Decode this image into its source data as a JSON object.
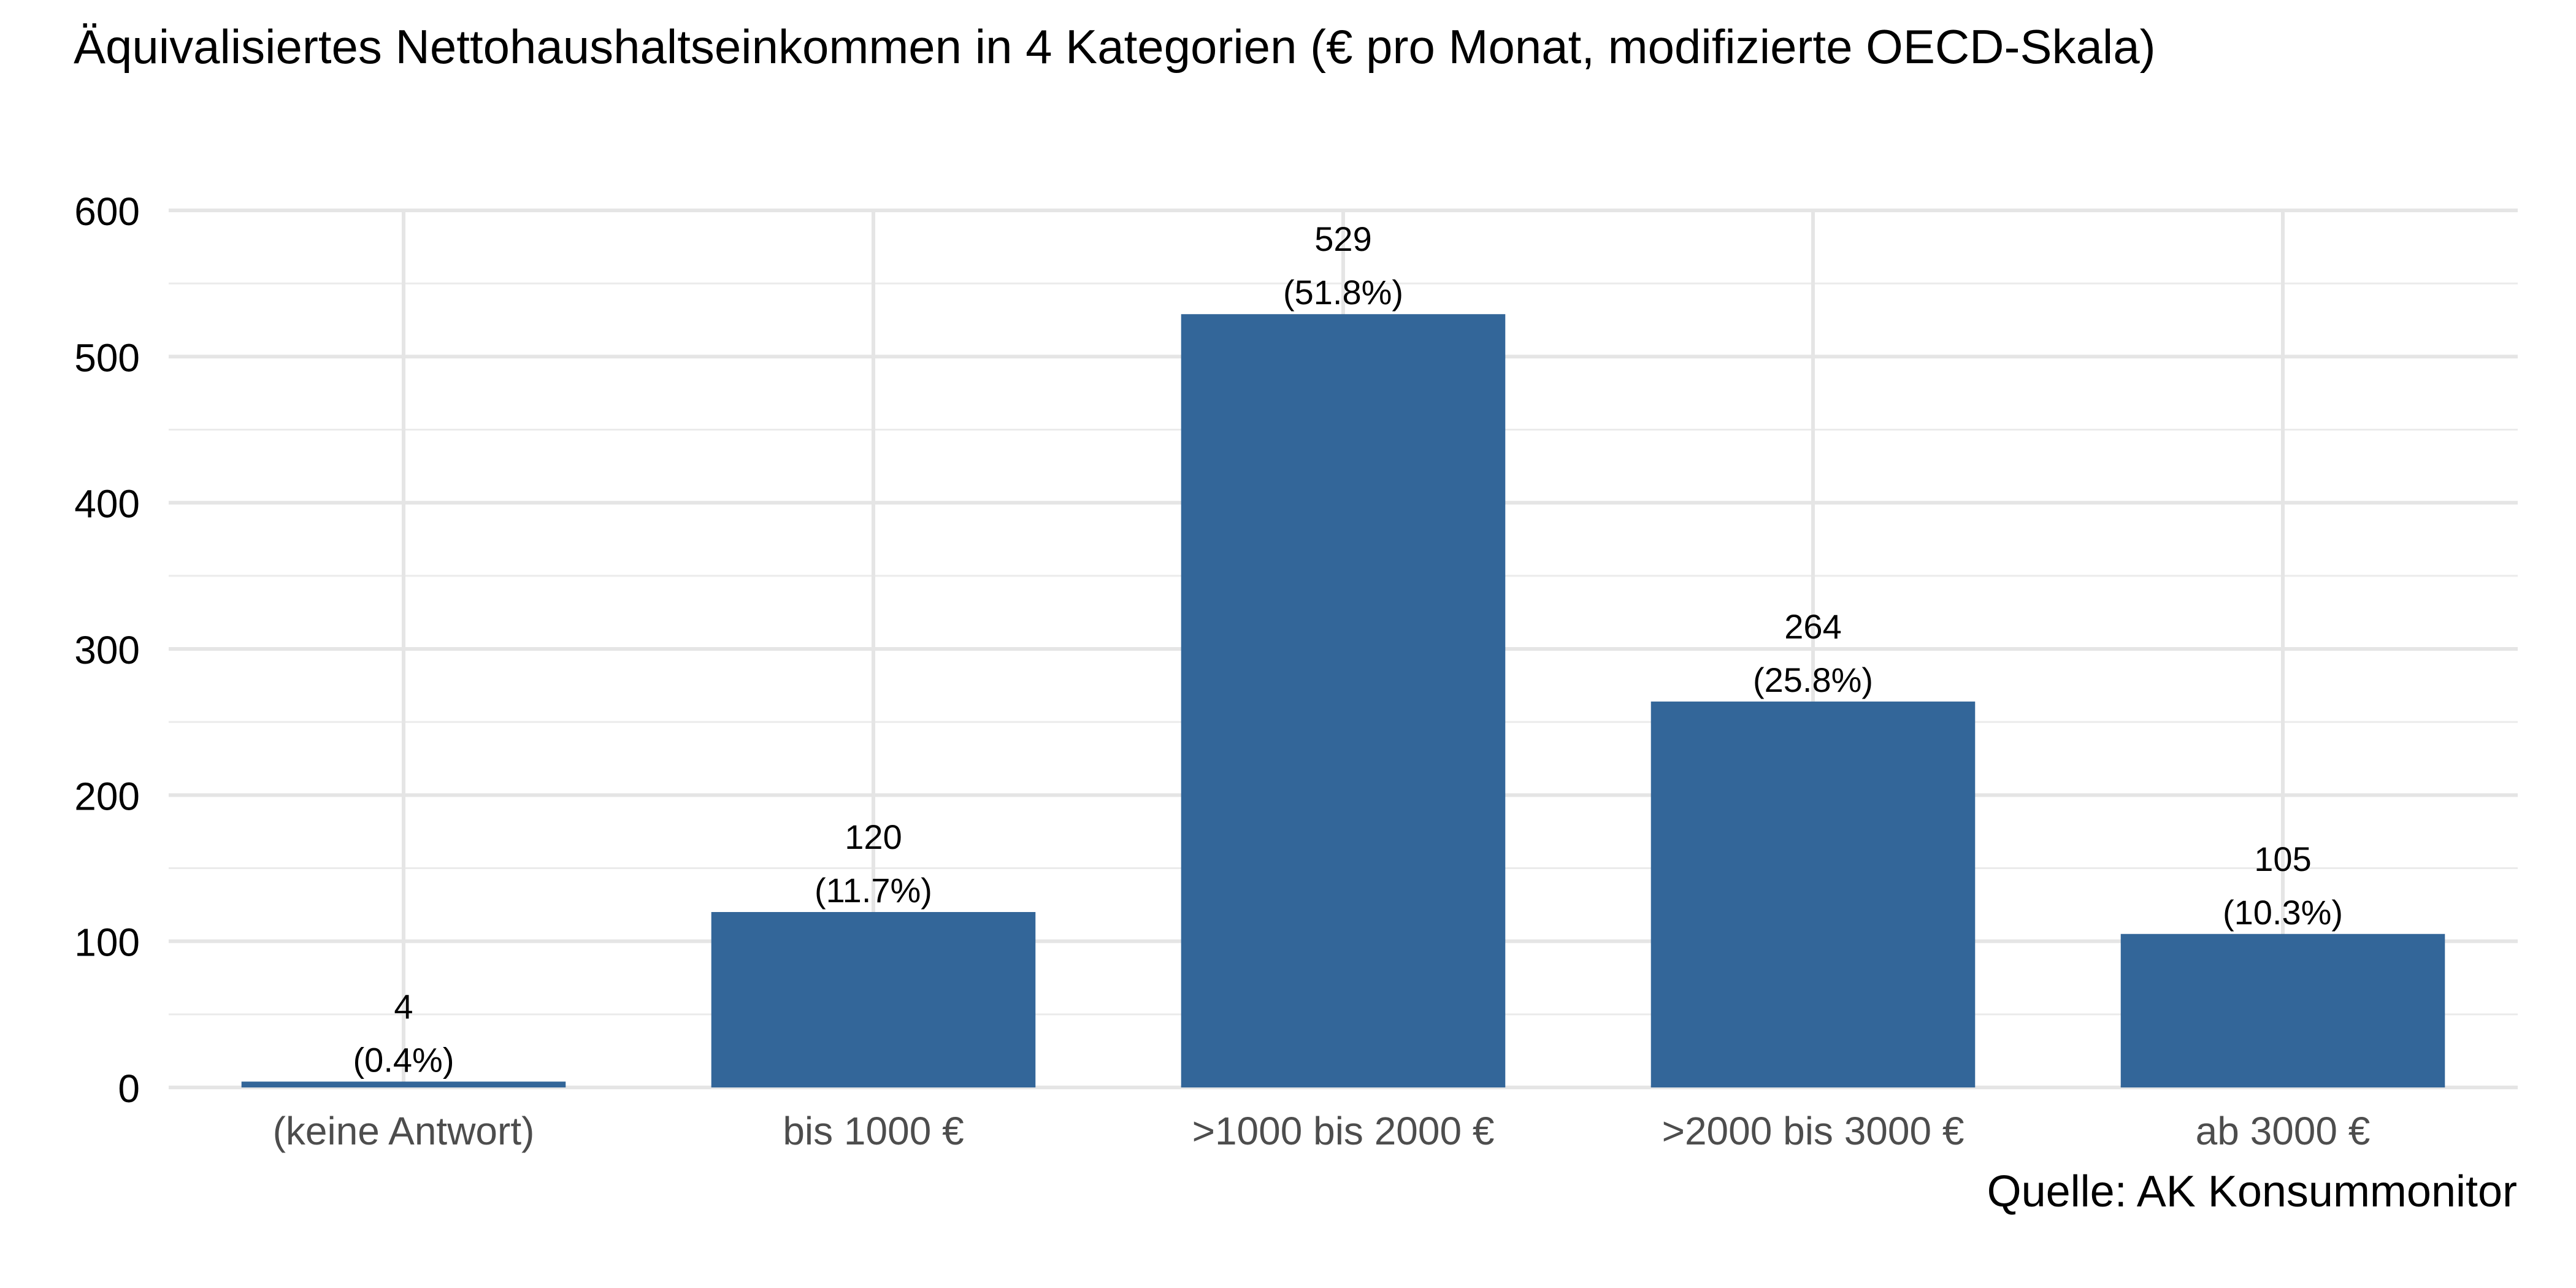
{
  "chart_data": {
    "type": "bar",
    "title": "Äquivalisiertes Nettohaushaltseinkommen in 4 Kategorien (€ pro Monat, modifizierte OECD-Skala)",
    "xlabel": "",
    "ylabel": "",
    "caption": "Quelle: AK Konsummonitor",
    "categories": [
      "(keine Antwort)",
      "bis 1000 €",
      ">1000 bis 2000 €",
      ">2000 bis 3000 €",
      "ab 3000 €"
    ],
    "values": [
      4,
      120,
      529,
      264,
      105
    ],
    "value_labels": [
      "4",
      "120",
      "529",
      "264",
      "105"
    ],
    "percent_labels": [
      "(0.4%)",
      "(11.7%)",
      "(51.8%)",
      "(25.8%)",
      "(10.3%)"
    ],
    "ylim": [
      0,
      600
    ],
    "yticks": [
      0,
      100,
      200,
      300,
      400,
      500,
      600
    ],
    "ytick_labels": [
      "0",
      "100",
      "200",
      "300",
      "400",
      "500",
      "600"
    ],
    "grid": true,
    "legend": "none",
    "bar_color": "#336699"
  }
}
